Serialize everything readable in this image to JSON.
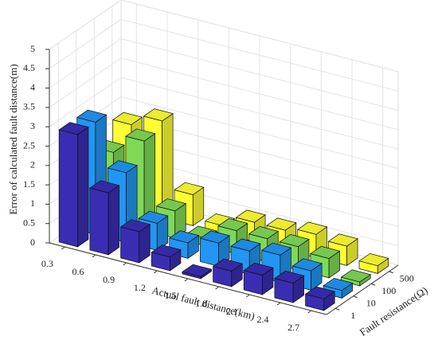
{
  "chart_data": {
    "type": "bar3d",
    "xlabel": "Actual fault distance(km)",
    "ylabel": "Fault resistance(Ω)",
    "zlabel": "Error of calculated fault distance(m)",
    "categories": [
      "0.3",
      "0.6",
      "0.9",
      "1.2",
      "1.5",
      "1.8",
      "2.1",
      "2.4",
      "2.7"
    ],
    "series": [
      {
        "name": "1",
        "color": "#3b2db3",
        "values": [
          2.9,
          1.6,
          0.8,
          0.35,
          0.05,
          0.4,
          0.5,
          0.5,
          0.3
        ]
      },
      {
        "name": "10",
        "color": "#2196f3",
        "values": [
          2.9,
          1.8,
          0.7,
          0.4,
          0.6,
          0.6,
          0.7,
          0.5,
          0.2
        ]
      },
      {
        "name": "100",
        "color": "#7fd957",
        "values": [
          1.8,
          2.3,
          0.7,
          0.2,
          0.6,
          0.6,
          0.6,
          0.5,
          0.1
        ]
      },
      {
        "name": "500",
        "color": "#ffff33",
        "values": [
          2.2,
          2.5,
          0.8,
          0.2,
          0.5,
          0.5,
          0.6,
          0.5,
          0.2
        ]
      }
    ],
    "zlim": [
      0,
      5
    ],
    "zticks": [
      0,
      0.5,
      1,
      1.5,
      2,
      2.5,
      3,
      3.5,
      4,
      4.5,
      5
    ],
    "grid": true
  }
}
